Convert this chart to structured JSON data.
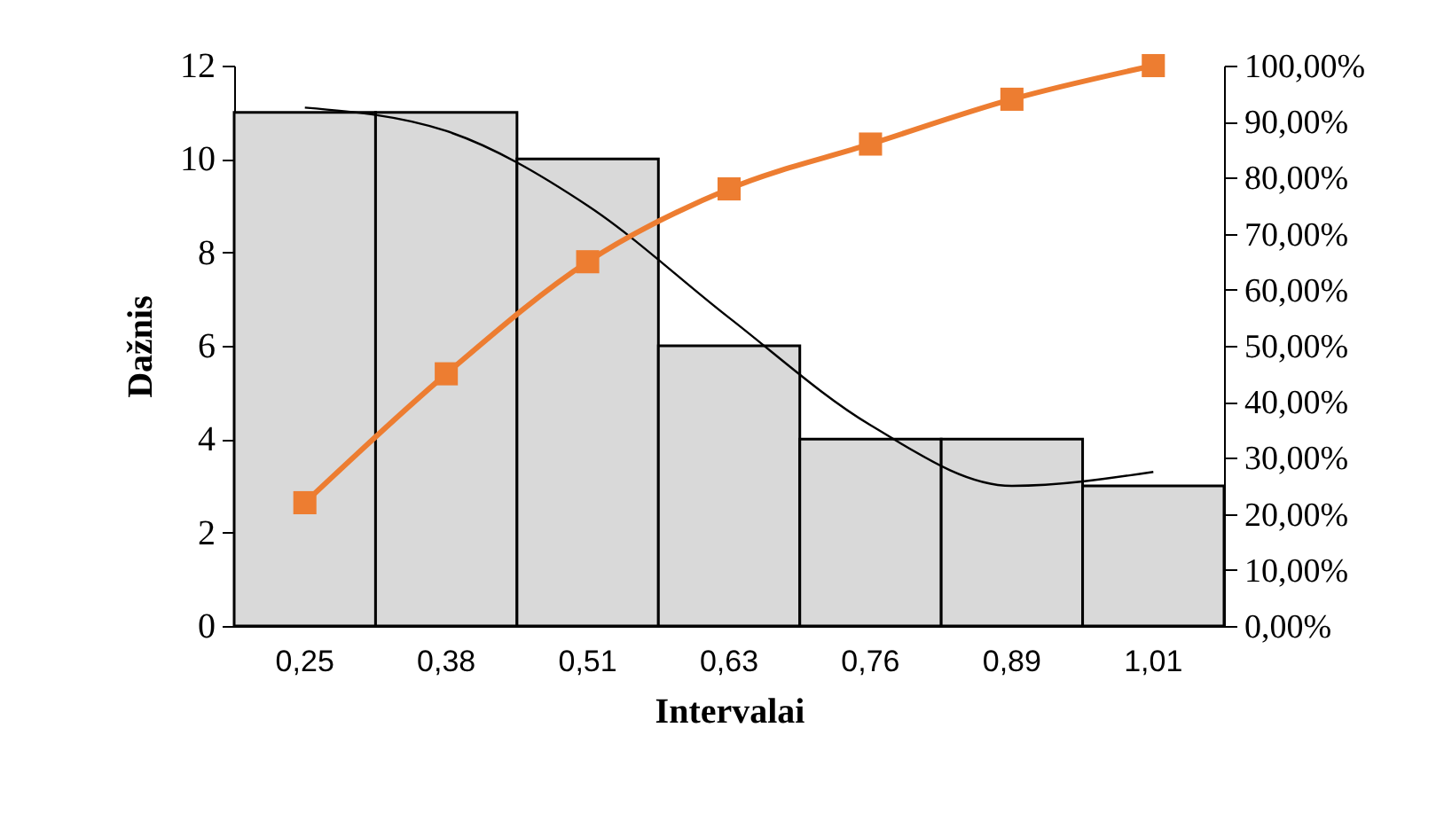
{
  "chart_data": {
    "type": "bar",
    "xlabel": "Intervalai",
    "ylabel": "Dažnis",
    "categories": [
      "0,25",
      "0,38",
      "0,51",
      "0,63",
      "0,76",
      "0,89",
      "1,01"
    ],
    "series": [
      {
        "color": "#d9d9d9",
        "values": [
          11,
          11,
          10,
          6,
          4,
          4,
          3
        ]
      },
      {
        "type": "line",
        "color": "#000000",
        "marker": "none",
        "values": [
          11.1,
          10.6,
          9.0,
          6.6,
          4.3,
          3.0,
          3.3
        ]
      },
      {
        "type": "line",
        "axis": "y2",
        "color": "#ed7d31",
        "marker": "square",
        "values": [
          22,
          45,
          65,
          78,
          86,
          94,
          100
        ]
      }
    ],
    "ylim": [
      0,
      12
    ],
    "yticks": [
      0,
      2,
      4,
      6,
      8,
      10,
      12
    ],
    "y2lim": [
      0,
      100
    ],
    "y2ticks": [
      {
        "value": 0,
        "label": "0,00%"
      },
      {
        "value": 10,
        "label": "10,00%"
      },
      {
        "value": 20,
        "label": "20,00%"
      },
      {
        "value": 30,
        "label": "30,00%"
      },
      {
        "value": 40,
        "label": "40,00%"
      },
      {
        "value": 50,
        "label": "50,00%"
      },
      {
        "value": 60,
        "label": "60,00%"
      },
      {
        "value": 70,
        "label": "70,00%"
      },
      {
        "value": 80,
        "label": "80,00%"
      },
      {
        "value": 90,
        "label": "90,00%"
      },
      {
        "value": 100,
        "label": "100,00%"
      }
    ],
    "grid": false
  }
}
